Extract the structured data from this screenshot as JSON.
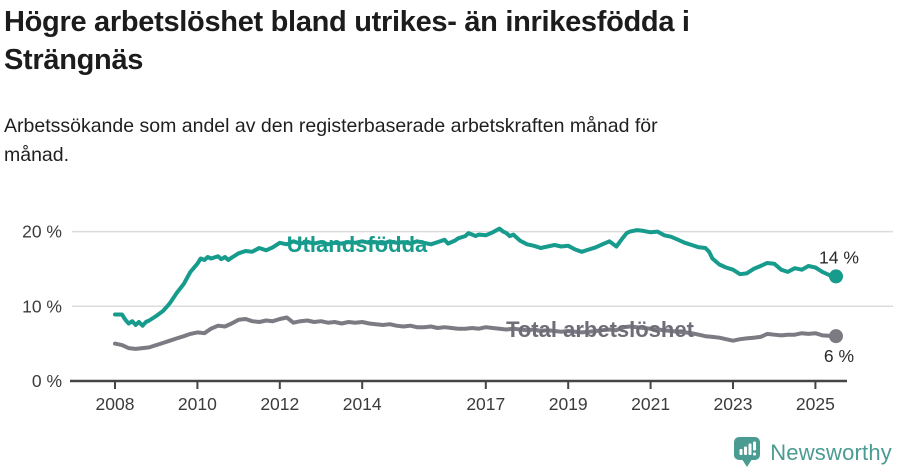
{
  "header": {
    "title": "Högre arbetslöshet bland utrikes- än inrikesfödda i\nSträngnäs",
    "subtitle": "Arbetssökande som andel av den registerbaserade arbetskraften månad för\nmånad."
  },
  "branding": {
    "logo_text": "Newsworthy",
    "logo_icon": "newsworthy-chart-bubble-icon",
    "brand_color": "#4a9b92"
  },
  "chart_data": {
    "type": "line",
    "title": "Högre arbetslöshet bland utrikes- än inrikesfödda i Strängnäs",
    "subtitle": "Arbetssökande som andel av den registerbaserade arbetskraften månad för månad.",
    "grid": "horizontal",
    "legend_position": "inline-labels",
    "x_axis": {
      "ticks": [
        2008,
        2010,
        2012,
        2014,
        2017,
        2019,
        2021,
        2023,
        2025
      ],
      "range": [
        2008,
        2025.7
      ]
    },
    "y_axis": {
      "ticks": [
        0,
        10,
        20
      ],
      "unit": "%",
      "tick_format": "{v} %",
      "range": [
        0,
        21.5
      ]
    },
    "colors": {
      "axis": "#454545",
      "gridline": "#dcdcdc",
      "tick_label": "#3c3c3c",
      "end_label": "#2b2b2b"
    },
    "series": [
      {
        "name": "Utlandsfödda",
        "color": "#169b8d",
        "label_color": "#169b8d",
        "end_label": "14 %",
        "end_label_position": "above",
        "points": [
          [
            2008.0,
            8.9
          ],
          [
            2008.17,
            8.9
          ],
          [
            2008.25,
            8.2
          ],
          [
            2008.33,
            7.7
          ],
          [
            2008.42,
            8.0
          ],
          [
            2008.5,
            7.5
          ],
          [
            2008.58,
            7.9
          ],
          [
            2008.67,
            7.4
          ],
          [
            2008.75,
            7.9
          ],
          [
            2008.83,
            8.1
          ],
          [
            2009.0,
            8.7
          ],
          [
            2009.17,
            9.4
          ],
          [
            2009.33,
            10.4
          ],
          [
            2009.5,
            11.8
          ],
          [
            2009.67,
            13.0
          ],
          [
            2009.83,
            14.6
          ],
          [
            2010.0,
            15.7
          ],
          [
            2010.08,
            16.4
          ],
          [
            2010.17,
            16.2
          ],
          [
            2010.25,
            16.6
          ],
          [
            2010.33,
            16.4
          ],
          [
            2010.5,
            16.7
          ],
          [
            2010.58,
            16.3
          ],
          [
            2010.67,
            16.6
          ],
          [
            2010.75,
            16.2
          ],
          [
            2010.83,
            16.5
          ],
          [
            2011.0,
            17.1
          ],
          [
            2011.17,
            17.4
          ],
          [
            2011.33,
            17.3
          ],
          [
            2011.5,
            17.8
          ],
          [
            2011.67,
            17.5
          ],
          [
            2011.83,
            17.9
          ],
          [
            2012.0,
            18.5
          ],
          [
            2012.17,
            18.3
          ],
          [
            2012.33,
            18.7
          ],
          [
            2012.5,
            18.4
          ],
          [
            2012.67,
            18.6
          ],
          [
            2012.83,
            18.4
          ],
          [
            2013.0,
            18.6
          ],
          [
            2013.17,
            18.3
          ],
          [
            2013.33,
            18.5
          ],
          [
            2013.5,
            18.4
          ],
          [
            2013.67,
            18.6
          ],
          [
            2013.83,
            18.5
          ],
          [
            2014.0,
            18.7
          ],
          [
            2014.17,
            18.5
          ],
          [
            2014.33,
            18.6
          ],
          [
            2014.5,
            18.4
          ],
          [
            2014.67,
            18.7
          ],
          [
            2014.83,
            18.5
          ],
          [
            2015.0,
            18.6
          ],
          [
            2015.17,
            18.4
          ],
          [
            2015.33,
            18.7
          ],
          [
            2015.5,
            18.5
          ],
          [
            2015.67,
            18.3
          ],
          [
            2015.83,
            18.6
          ],
          [
            2016.0,
            18.9
          ],
          [
            2016.08,
            18.4
          ],
          [
            2016.25,
            18.8
          ],
          [
            2016.33,
            19.1
          ],
          [
            2016.5,
            19.4
          ],
          [
            2016.58,
            19.8
          ],
          [
            2016.67,
            19.6
          ],
          [
            2016.75,
            19.4
          ],
          [
            2016.83,
            19.6
          ],
          [
            2017.0,
            19.5
          ],
          [
            2017.17,
            19.9
          ],
          [
            2017.33,
            20.4
          ],
          [
            2017.42,
            20.0
          ],
          [
            2017.5,
            19.8
          ],
          [
            2017.58,
            19.4
          ],
          [
            2017.67,
            19.6
          ],
          [
            2017.83,
            18.8
          ],
          [
            2018.0,
            18.3
          ],
          [
            2018.17,
            18.1
          ],
          [
            2018.33,
            17.8
          ],
          [
            2018.5,
            18.0
          ],
          [
            2018.67,
            18.2
          ],
          [
            2018.83,
            18.0
          ],
          [
            2019.0,
            18.1
          ],
          [
            2019.17,
            17.6
          ],
          [
            2019.33,
            17.3
          ],
          [
            2019.5,
            17.6
          ],
          [
            2019.67,
            17.9
          ],
          [
            2019.83,
            18.3
          ],
          [
            2020.0,
            18.7
          ],
          [
            2020.17,
            18.0
          ],
          [
            2020.33,
            19.2
          ],
          [
            2020.42,
            19.8
          ],
          [
            2020.5,
            20.0
          ],
          [
            2020.67,
            20.2
          ],
          [
            2020.83,
            20.1
          ],
          [
            2021.0,
            19.9
          ],
          [
            2021.17,
            20.0
          ],
          [
            2021.33,
            19.5
          ],
          [
            2021.5,
            19.3
          ],
          [
            2021.67,
            18.9
          ],
          [
            2021.83,
            18.5
          ],
          [
            2022.0,
            18.2
          ],
          [
            2022.17,
            17.9
          ],
          [
            2022.33,
            17.8
          ],
          [
            2022.42,
            17.3
          ],
          [
            2022.5,
            16.4
          ],
          [
            2022.67,
            15.6
          ],
          [
            2022.83,
            15.2
          ],
          [
            2023.0,
            14.9
          ],
          [
            2023.17,
            14.3
          ],
          [
            2023.33,
            14.4
          ],
          [
            2023.5,
            15.0
          ],
          [
            2023.67,
            15.4
          ],
          [
            2023.83,
            15.8
          ],
          [
            2024.0,
            15.7
          ],
          [
            2024.17,
            14.9
          ],
          [
            2024.33,
            14.6
          ],
          [
            2024.5,
            15.1
          ],
          [
            2024.67,
            14.9
          ],
          [
            2024.83,
            15.4
          ],
          [
            2025.0,
            15.2
          ],
          [
            2025.17,
            14.6
          ],
          [
            2025.33,
            14.2
          ],
          [
            2025.5,
            14.0
          ]
        ]
      },
      {
        "name": "Total arbetslöshet",
        "color": "#7c7b83",
        "label_color": "#6f6e78",
        "end_label": "6 %",
        "end_label_position": "below",
        "points": [
          [
            2008.0,
            5.0
          ],
          [
            2008.17,
            4.8
          ],
          [
            2008.33,
            4.4
          ],
          [
            2008.5,
            4.3
          ],
          [
            2008.67,
            4.4
          ],
          [
            2008.83,
            4.5
          ],
          [
            2009.0,
            4.8
          ],
          [
            2009.17,
            5.1
          ],
          [
            2009.33,
            5.4
          ],
          [
            2009.5,
            5.7
          ],
          [
            2009.67,
            6.0
          ],
          [
            2009.83,
            6.3
          ],
          [
            2010.0,
            6.5
          ],
          [
            2010.17,
            6.4
          ],
          [
            2010.33,
            7.0
          ],
          [
            2010.5,
            7.4
          ],
          [
            2010.67,
            7.3
          ],
          [
            2010.83,
            7.7
          ],
          [
            2011.0,
            8.2
          ],
          [
            2011.17,
            8.3
          ],
          [
            2011.33,
            8.0
          ],
          [
            2011.5,
            7.9
          ],
          [
            2011.67,
            8.1
          ],
          [
            2011.83,
            8.0
          ],
          [
            2012.0,
            8.3
          ],
          [
            2012.17,
            8.5
          ],
          [
            2012.33,
            7.8
          ],
          [
            2012.5,
            8.0
          ],
          [
            2012.67,
            8.1
          ],
          [
            2012.83,
            7.9
          ],
          [
            2013.0,
            8.0
          ],
          [
            2013.17,
            7.8
          ],
          [
            2013.33,
            7.9
          ],
          [
            2013.5,
            7.7
          ],
          [
            2013.67,
            7.9
          ],
          [
            2013.83,
            7.8
          ],
          [
            2014.0,
            7.9
          ],
          [
            2014.17,
            7.7
          ],
          [
            2014.33,
            7.6
          ],
          [
            2014.5,
            7.5
          ],
          [
            2014.67,
            7.6
          ],
          [
            2014.83,
            7.4
          ],
          [
            2015.0,
            7.3
          ],
          [
            2015.17,
            7.4
          ],
          [
            2015.33,
            7.2
          ],
          [
            2015.5,
            7.2
          ],
          [
            2015.67,
            7.3
          ],
          [
            2015.83,
            7.1
          ],
          [
            2016.0,
            7.2
          ],
          [
            2016.17,
            7.1
          ],
          [
            2016.33,
            7.0
          ],
          [
            2016.5,
            7.0
          ],
          [
            2016.67,
            7.1
          ],
          [
            2016.83,
            7.0
          ],
          [
            2017.0,
            7.2
          ],
          [
            2017.17,
            7.1
          ],
          [
            2017.33,
            7.0
          ],
          [
            2017.5,
            6.9
          ],
          [
            2017.67,
            7.0
          ],
          [
            2017.83,
            6.9
          ],
          [
            2018.0,
            6.8
          ],
          [
            2018.17,
            6.9
          ],
          [
            2018.33,
            6.7
          ],
          [
            2018.5,
            6.8
          ],
          [
            2018.67,
            6.7
          ],
          [
            2018.83,
            6.6
          ],
          [
            2019.0,
            6.7
          ],
          [
            2019.17,
            6.6
          ],
          [
            2019.33,
            6.5
          ],
          [
            2019.5,
            6.6
          ],
          [
            2019.67,
            6.7
          ],
          [
            2019.83,
            6.8
          ],
          [
            2020.0,
            6.9
          ],
          [
            2020.17,
            6.8
          ],
          [
            2020.33,
            7.2
          ],
          [
            2020.5,
            7.3
          ],
          [
            2020.67,
            7.2
          ],
          [
            2020.83,
            7.1
          ],
          [
            2021.0,
            7.0
          ],
          [
            2021.17,
            6.9
          ],
          [
            2021.33,
            6.8
          ],
          [
            2021.5,
            6.7
          ],
          [
            2021.67,
            6.6
          ],
          [
            2021.83,
            6.5
          ],
          [
            2022.0,
            6.4
          ],
          [
            2022.17,
            6.2
          ],
          [
            2022.33,
            6.0
          ],
          [
            2022.5,
            5.9
          ],
          [
            2022.67,
            5.8
          ],
          [
            2022.83,
            5.6
          ],
          [
            2023.0,
            5.4
          ],
          [
            2023.17,
            5.6
          ],
          [
            2023.33,
            5.7
          ],
          [
            2023.5,
            5.8
          ],
          [
            2023.67,
            5.9
          ],
          [
            2023.83,
            6.3
          ],
          [
            2024.0,
            6.2
          ],
          [
            2024.17,
            6.1
          ],
          [
            2024.33,
            6.2
          ],
          [
            2024.5,
            6.2
          ],
          [
            2024.67,
            6.4
          ],
          [
            2024.83,
            6.3
          ],
          [
            2025.0,
            6.4
          ],
          [
            2025.17,
            6.1
          ],
          [
            2025.5,
            6.0
          ]
        ]
      }
    ]
  }
}
